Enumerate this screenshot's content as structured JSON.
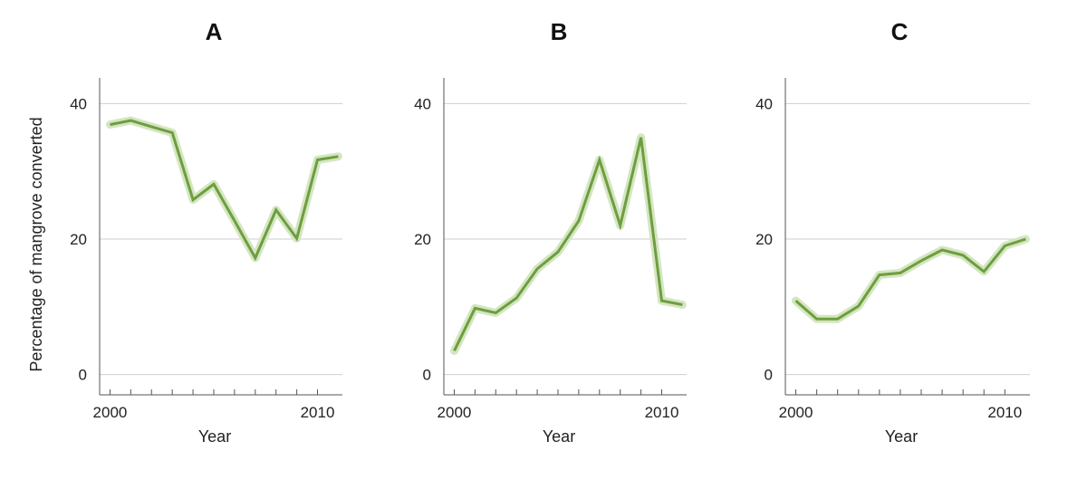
{
  "chart_data": [
    {
      "type": "line",
      "title": "A",
      "xlabel": "Year",
      "ylabel": "Percentage of mangrove converted",
      "xlim": [
        1999.5,
        2011.2
      ],
      "ylim": [
        -3,
        43
      ],
      "yticks": [
        0,
        20,
        40
      ],
      "xticks_labeled": [
        2000,
        2010
      ],
      "xticks_minor": [
        2000,
        2001,
        2002,
        2003,
        2004,
        2005,
        2006,
        2007,
        2008,
        2009,
        2010
      ],
      "grid": "horizontal",
      "series": [
        {
          "x": [
            2000,
            2001,
            2002,
            2003,
            2004,
            2005,
            2006,
            2007,
            2008,
            2009,
            2010,
            2011
          ],
          "y": [
            36.9,
            37.5,
            36.6,
            35.7,
            25.8,
            28.1,
            22.7,
            17.2,
            24.3,
            20.1,
            31.7,
            32.2
          ]
        }
      ]
    },
    {
      "type": "line",
      "title": "B",
      "xlabel": "Year",
      "ylabel": "",
      "xlim": [
        1999.5,
        2011.2
      ],
      "ylim": [
        -3,
        43
      ],
      "yticks": [
        0,
        20,
        40
      ],
      "xticks_labeled": [
        2000,
        2010
      ],
      "xticks_minor": [
        2000,
        2001,
        2002,
        2003,
        2004,
        2005,
        2006,
        2007,
        2008,
        2009,
        2010
      ],
      "grid": "horizontal",
      "series": [
        {
          "x": [
            2000,
            2001,
            2002,
            2003,
            2004,
            2005,
            2006,
            2007,
            2008,
            2009,
            2010,
            2011
          ],
          "y": [
            3.5,
            9.8,
            9.1,
            11.3,
            15.6,
            18.1,
            22.7,
            31.7,
            22.0,
            35.0,
            10.9,
            10.3
          ]
        }
      ]
    },
    {
      "type": "line",
      "title": "C",
      "xlabel": "Year",
      "ylabel": "",
      "xlim": [
        1999.5,
        2011.2
      ],
      "ylim": [
        -3,
        43
      ],
      "yticks": [
        0,
        20,
        40
      ],
      "xticks_labeled": [
        2000,
        2010
      ],
      "xticks_minor": [
        2000,
        2001,
        2002,
        2003,
        2004,
        2005,
        2006,
        2007,
        2008,
        2009,
        2010
      ],
      "grid": "horizontal",
      "series": [
        {
          "x": [
            2000,
            2001,
            2002,
            2003,
            2004,
            2005,
            2006,
            2007,
            2008,
            2009,
            2010,
            2011
          ],
          "y": [
            10.9,
            8.2,
            8.2,
            10.1,
            14.7,
            15.0,
            16.8,
            18.4,
            17.6,
            15.2,
            19.0,
            20.0
          ]
        }
      ]
    }
  ],
  "colors": {
    "line": "#6e9e3f",
    "band": "#d4e6c1",
    "grid": "#cfcfcf",
    "axis": "#555555"
  }
}
